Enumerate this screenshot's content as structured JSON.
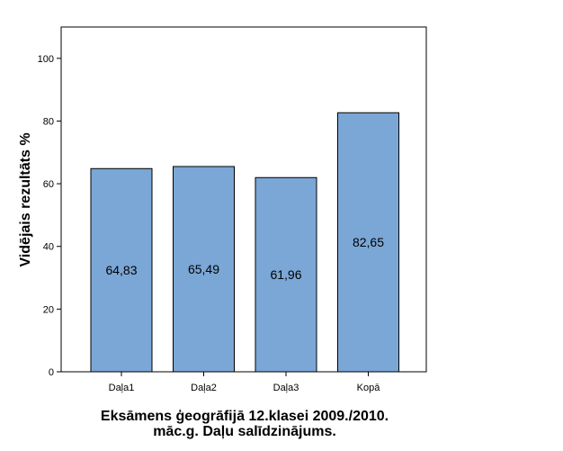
{
  "chart_data": {
    "type": "bar",
    "categories": [
      "Daļa1",
      "Daļa2",
      "Daļa3",
      "Kopā"
    ],
    "values": [
      64.83,
      65.49,
      61.96,
      82.65
    ],
    "value_labels": [
      "64,83",
      "65,49",
      "61,96",
      "82,65"
    ],
    "xlabel_lines": [
      "Eksāmens ģeogrāfijā 12.klasei 2009./2010.",
      "māc.g. Daļu salīdzinājums."
    ],
    "ylabel": "Vidējais rezultāts %",
    "ylim": [
      0,
      110
    ],
    "yticks": [
      0,
      20,
      40,
      60,
      80,
      100
    ],
    "grid": false,
    "legend": "none",
    "bar_color": "#7BA7D6",
    "bar_edge_color": "#000000"
  }
}
